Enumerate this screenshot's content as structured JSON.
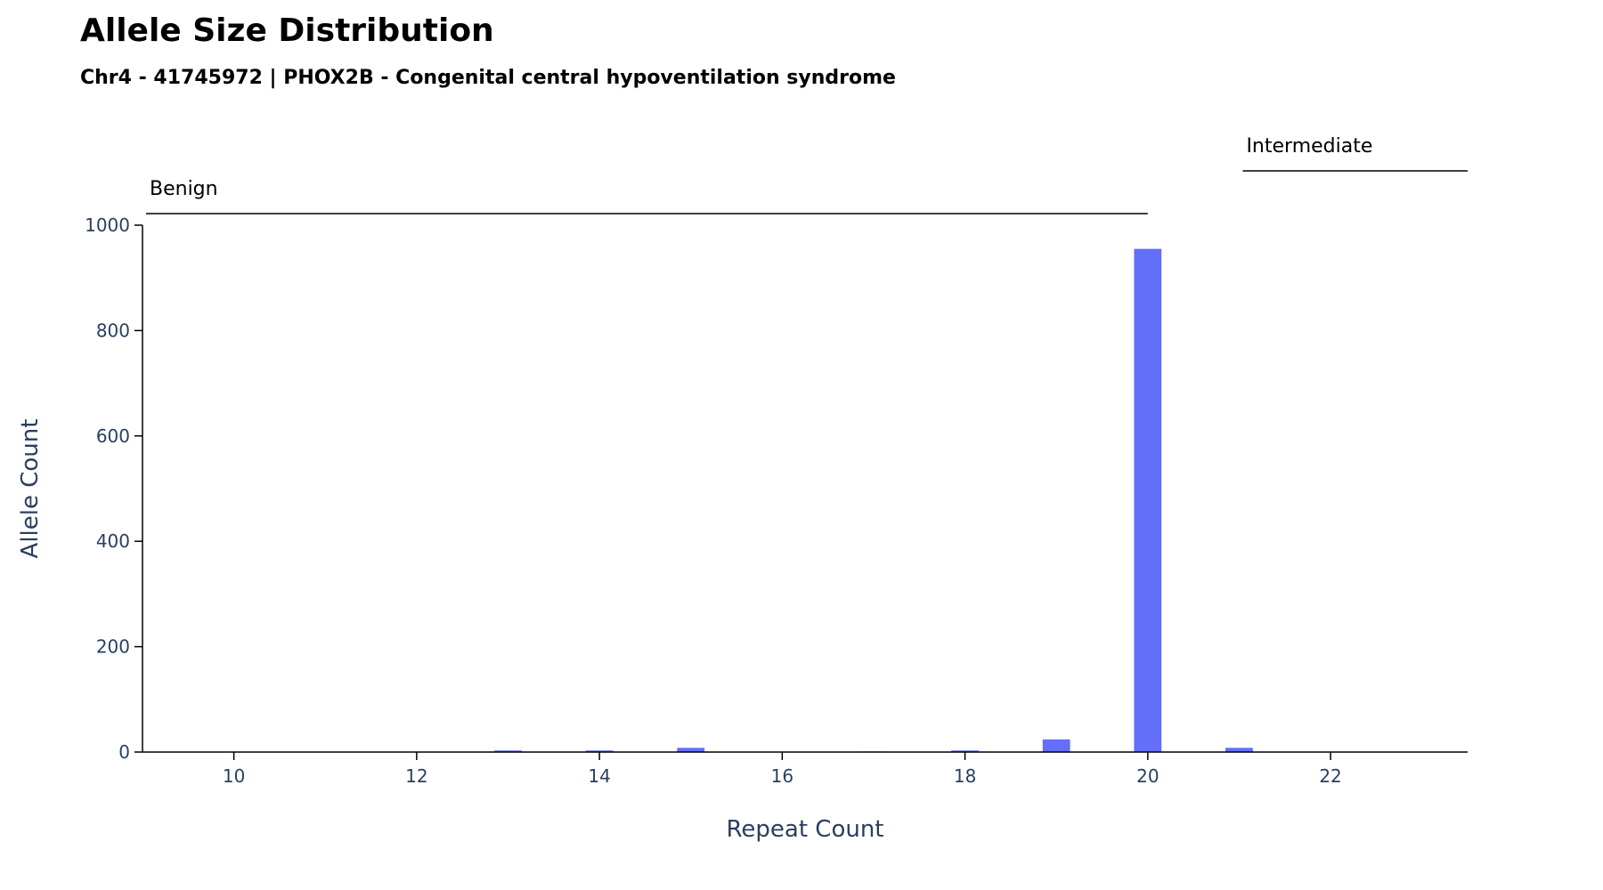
{
  "chart_data": {
    "type": "bar",
    "title": "Allele Size Distribution",
    "subtitle": "Chr4 - 41745972 | PHOX2B - Congenital central hypoventilation syndrome",
    "xlabel": "Repeat Count",
    "ylabel": "Allele Count",
    "x": [
      13,
      14,
      15,
      17,
      18,
      19,
      20,
      21
    ],
    "values": [
      3,
      3,
      8,
      1,
      3,
      24,
      955,
      8
    ],
    "xlim": [
      9,
      23.5
    ],
    "ylim": [
      0,
      1000
    ],
    "xticks": [
      10,
      12,
      14,
      16,
      18,
      20,
      22
    ],
    "yticks": [
      0,
      200,
      400,
      600,
      800,
      1000
    ],
    "bar_color": "#636efa",
    "grid": false,
    "regions": [
      {
        "label": "Benign",
        "start": 9,
        "end": 20
      },
      {
        "label": "Intermediate",
        "start": 21,
        "end": 23.5
      }
    ]
  }
}
